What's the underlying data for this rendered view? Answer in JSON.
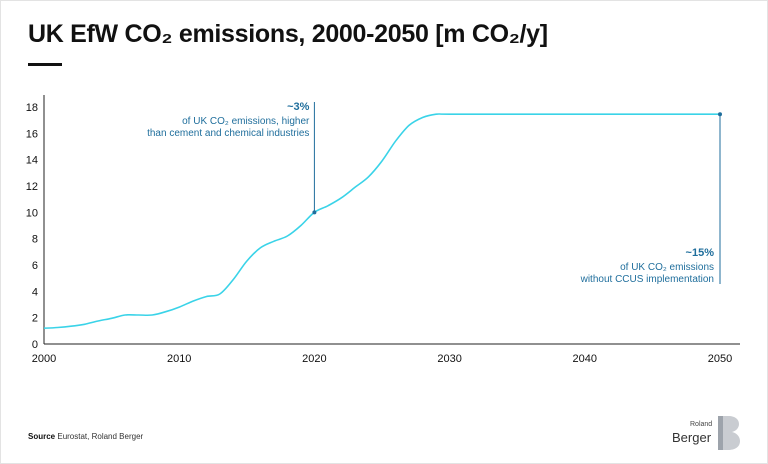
{
  "title": "UK EfW CO₂ emissions, 2000-2050 [m CO₂/y]",
  "footer": {
    "source_label": "Source",
    "source_text": "Eurostat, Roland Berger"
  },
  "logo": {
    "small": "Roland",
    "big": "Berger"
  },
  "colors": {
    "line": "#3ad3e8",
    "annotation": "#1f6e9c",
    "axis": "#222222",
    "text": "#111111"
  },
  "chart_data": {
    "type": "line",
    "title": "UK EfW CO₂ emissions, 2000-2050 [m CO₂/y]",
    "xlabel": "",
    "ylabel": "",
    "xlim": [
      2000,
      2050
    ],
    "ylim": [
      0,
      18
    ],
    "grid": false,
    "x_ticks": [
      2000,
      2010,
      2020,
      2030,
      2040,
      2050
    ],
    "y_ticks": [
      0,
      2,
      4,
      6,
      8,
      10,
      12,
      14,
      16,
      18
    ],
    "series": [
      {
        "name": "UK EfW CO₂ emissions",
        "x": [
          2000,
          2001,
          2002,
          2003,
          2004,
          2005,
          2006,
          2007,
          2008,
          2009,
          2010,
          2011,
          2012,
          2013,
          2014,
          2015,
          2016,
          2017,
          2018,
          2019,
          2020,
          2021,
          2022,
          2023,
          2024,
          2025,
          2026,
          2027,
          2028,
          2029,
          2030,
          2035,
          2040,
          2045,
          2050
        ],
        "y": [
          1.2,
          1.25,
          1.35,
          1.5,
          1.75,
          1.95,
          2.2,
          2.2,
          2.2,
          2.45,
          2.8,
          3.25,
          3.6,
          3.8,
          4.9,
          6.3,
          7.3,
          7.8,
          8.2,
          9.0,
          10.0,
          10.5,
          11.1,
          11.9,
          12.7,
          13.9,
          15.4,
          16.6,
          17.2,
          17.45,
          17.45,
          17.45,
          17.45,
          17.45,
          17.45
        ]
      }
    ],
    "annotations": [
      {
        "x": 2020,
        "y": 10.0,
        "value": "~3%",
        "lines": [
          "of UK CO₂ emissions, higher",
          "than cement and chemical industries"
        ]
      },
      {
        "x": 2050,
        "y": 17.45,
        "value": "~15%",
        "lines": [
          "of UK CO₂ emissions",
          "without CCUS implementation"
        ]
      }
    ]
  }
}
